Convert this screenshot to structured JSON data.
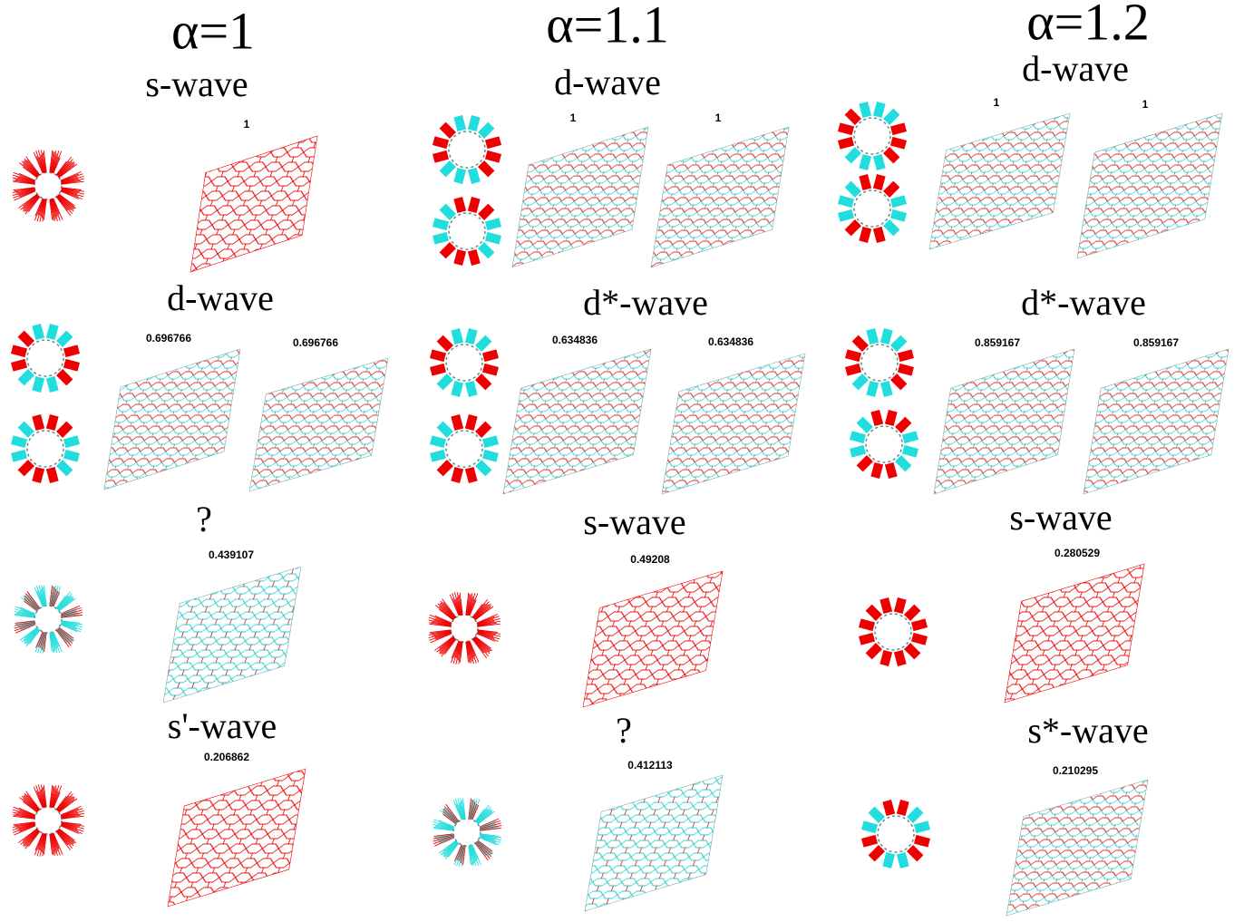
{
  "columns": [
    {
      "header": "α=1",
      "sections": [
        {
          "label": "s-wave",
          "values": [
            "1"
          ]
        },
        {
          "label": "d-wave",
          "values": [
            "0.696766",
            "0.696766"
          ]
        },
        {
          "label": "?",
          "values": [
            "0.439107"
          ]
        },
        {
          "label": "s'-wave",
          "values": [
            "0.206862"
          ]
        }
      ]
    },
    {
      "header": "α=1.1",
      "sections": [
        {
          "label": "d-wave",
          "values": [
            "1",
            "1"
          ]
        },
        {
          "label": "d*-wave",
          "values": [
            "0.634836",
            "0.634836"
          ]
        },
        {
          "label": "s-wave",
          "values": [
            "0.49208"
          ]
        },
        {
          "label": "?",
          "values": [
            "0.412113"
          ]
        }
      ]
    },
    {
      "header": "α=1.2",
      "sections": [
        {
          "label": "d-wave",
          "values": [
            "1",
            "1"
          ]
        },
        {
          "label": "d*-wave",
          "values": [
            "0.859167",
            "0.859167"
          ]
        },
        {
          "label": "s-wave",
          "values": [
            "0.280529"
          ]
        },
        {
          "label": "s*-wave",
          "values": [
            "0.210295"
          ]
        }
      ]
    }
  ]
}
